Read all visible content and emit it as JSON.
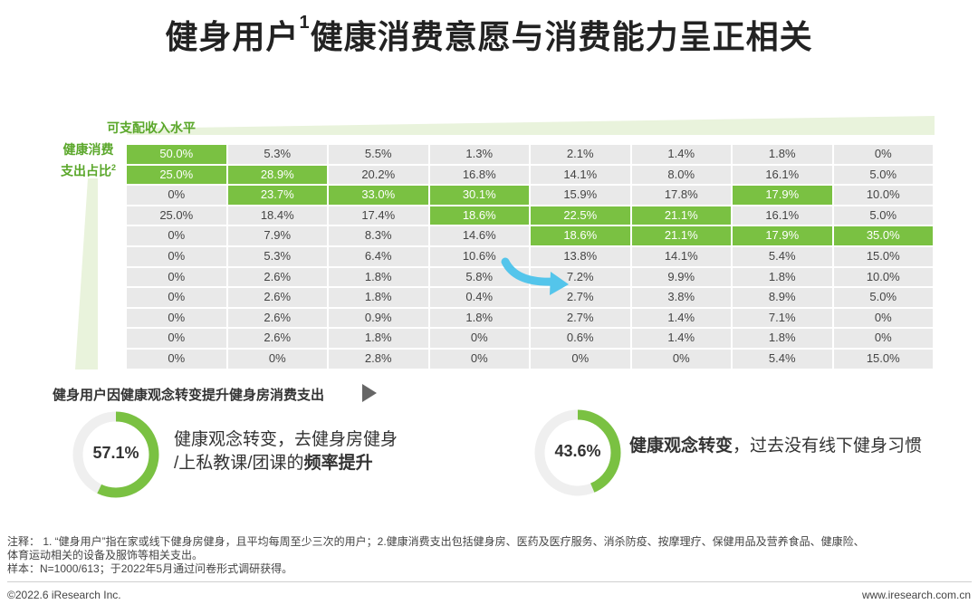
{
  "title": {
    "text": "健身用户",
    "sup": "1",
    "rest": "健康消费意愿与消费能力呈正相关"
  },
  "income_axis_label": "可支配收入水平",
  "health_axis_label_line1": "健康消费",
  "health_axis_label_line2": "支出占比",
  "health_axis_sup": "2",
  "colors": {
    "highlight": "#7ac142",
    "cell": "#e9e9e9",
    "wedge": "#e9f3dc",
    "arrow": "#54c5eb",
    "donut_track": "#efefef"
  },
  "chart_data": {
    "type": "table",
    "title": "",
    "rows": [
      [
        "50.0%",
        "5.3%",
        "5.5%",
        "1.3%",
        "2.1%",
        "1.4%",
        "1.8%",
        "0%"
      ],
      [
        "25.0%",
        "28.9%",
        "20.2%",
        "16.8%",
        "14.1%",
        "8.0%",
        "16.1%",
        "5.0%"
      ],
      [
        "0%",
        "23.7%",
        "33.0%",
        "30.1%",
        "15.9%",
        "17.8%",
        "17.9%",
        "10.0%"
      ],
      [
        "25.0%",
        "18.4%",
        "17.4%",
        "18.6%",
        "22.5%",
        "21.1%",
        "16.1%",
        "5.0%"
      ],
      [
        "0%",
        "7.9%",
        "8.3%",
        "14.6%",
        "18.6%",
        "21.1%",
        "17.9%",
        "35.0%"
      ],
      [
        "0%",
        "5.3%",
        "6.4%",
        "10.6%",
        "13.8%",
        "14.1%",
        "5.4%",
        "15.0%"
      ],
      [
        "0%",
        "2.6%",
        "1.8%",
        "5.8%",
        "7.2%",
        "9.9%",
        "1.8%",
        "10.0%"
      ],
      [
        "0%",
        "2.6%",
        "1.8%",
        "0.4%",
        "2.7%",
        "3.8%",
        "8.9%",
        "5.0%"
      ],
      [
        "0%",
        "2.6%",
        "0.9%",
        "1.8%",
        "2.7%",
        "1.4%",
        "7.1%",
        "0%"
      ],
      [
        "0%",
        "2.6%",
        "1.8%",
        "0%",
        "0.6%",
        "1.4%",
        "1.8%",
        "0%"
      ],
      [
        "0%",
        "0%",
        "2.8%",
        "0%",
        "0%",
        "0%",
        "5.4%",
        "15.0%"
      ]
    ],
    "highlighted": [
      [
        0,
        0
      ],
      [
        1,
        0
      ],
      [
        1,
        1
      ],
      [
        2,
        1
      ],
      [
        2,
        2
      ],
      [
        2,
        3
      ],
      [
        3,
        3
      ],
      [
        3,
        4
      ],
      [
        3,
        5
      ],
      [
        4,
        4
      ],
      [
        4,
        5
      ],
      [
        2,
        6
      ],
      [
        4,
        6
      ],
      [
        4,
        7
      ]
    ]
  },
  "section_title": "健身用户因健康观念转变提升健身房消费支出",
  "donuts": [
    {
      "value": 57.1,
      "label": "57.1%",
      "text_line1": "健康观念转变，去健身房健身",
      "text_line2_plain": "/上私教课/团课的",
      "text_line2_bold": "频率提升"
    },
    {
      "value": 43.6,
      "label": "43.6%",
      "text_bold": "健康观念转变",
      "text_plain": "，过去没有线下健身习惯"
    }
  ],
  "note_line1": "注释： 1. “健身用户”指在家或线下健身房健身，且平均每周至少三次的用户；2.健康消费支出包括健身房、医药及医疗服务、消杀防疫、按摩理疗、保健用品及营养食品、健康险、",
  "note_line2": "体育运动相关的设备及服饰等相关支出。",
  "note_line3": "样本：N=1000/613；于2022年5月通过问卷形式调研获得。",
  "footer_left": "©2022.6 iResearch Inc.",
  "footer_right": "www.iresearch.com.cn"
}
